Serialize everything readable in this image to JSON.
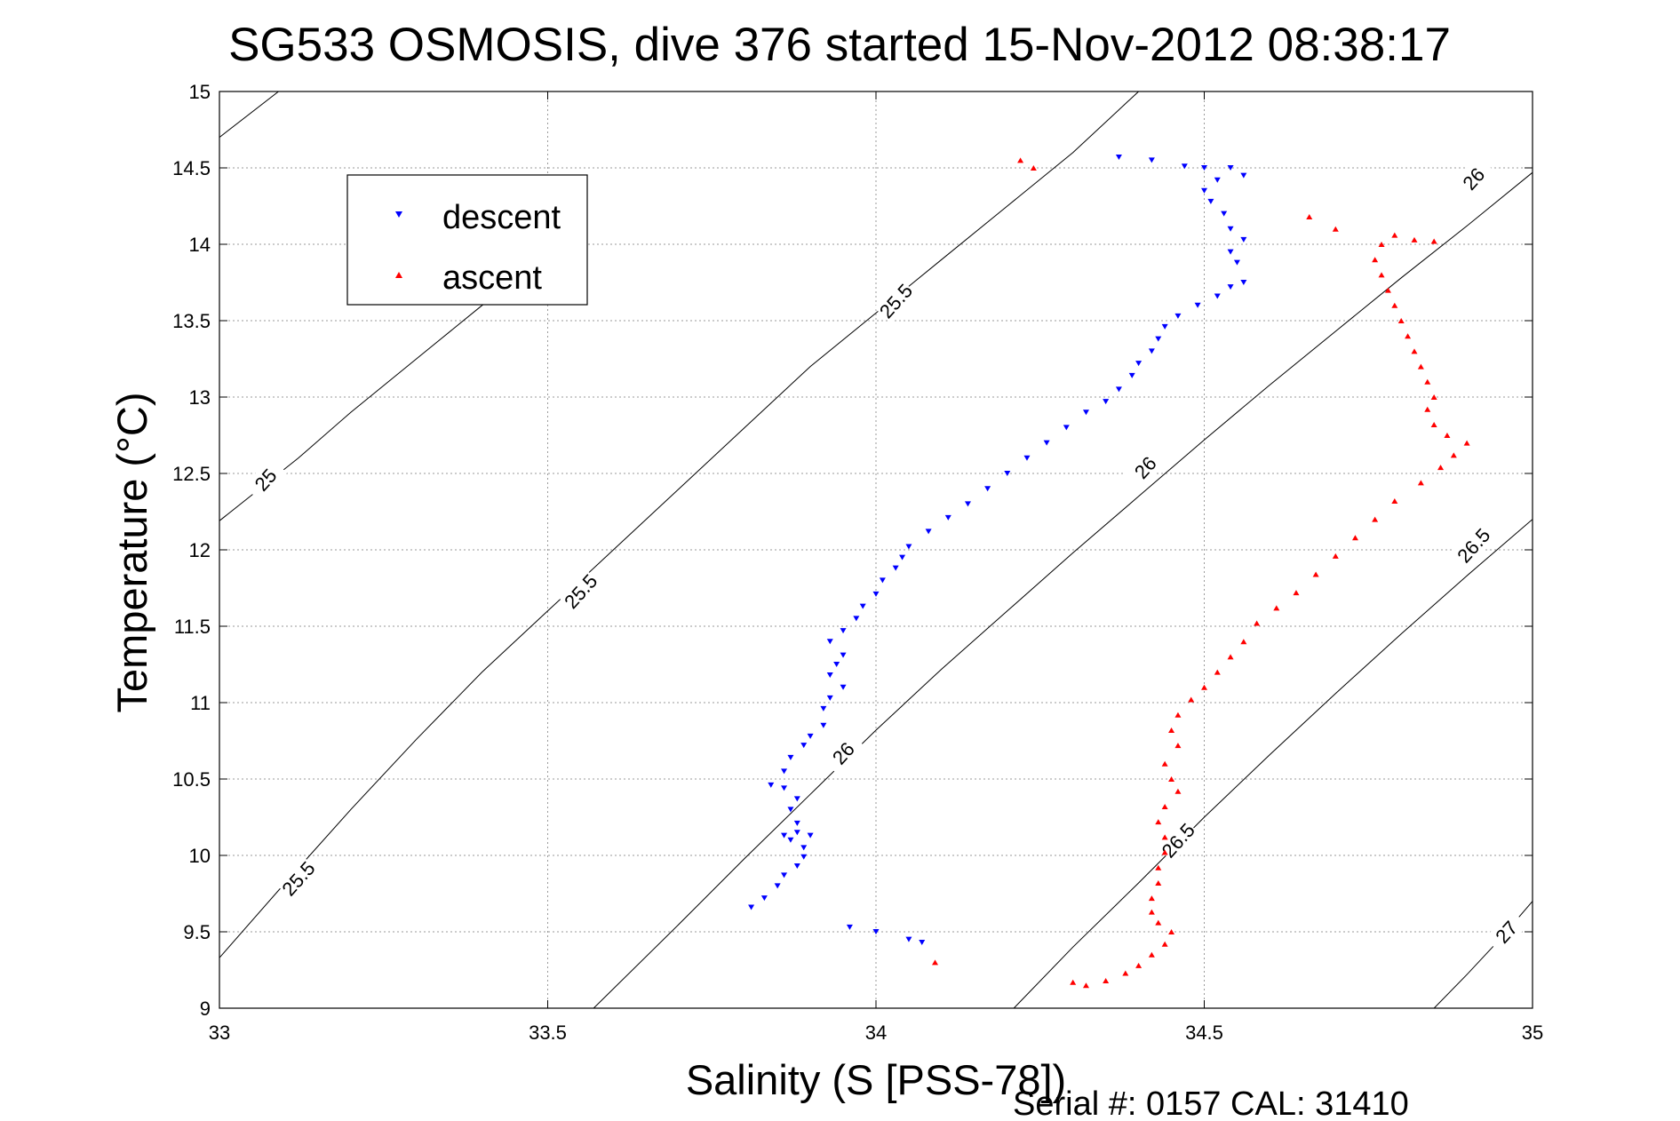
{
  "chart_data": {
    "type": "scatter",
    "title": "SG533 OSMOSIS, dive 376 started 15-Nov-2012 08:38:17",
    "xlabel": "Salinity (S [PSS-78])",
    "ylabel": "Temperature (°C)",
    "xlim": [
      33,
      35
    ],
    "ylim": [
      9,
      15
    ],
    "xticks": [
      33,
      33.5,
      34,
      34.5,
      35
    ],
    "xtick_labels": [
      "33",
      "33.5",
      "34",
      "34.5",
      "35"
    ],
    "yticks": [
      9,
      9.5,
      10,
      10.5,
      11,
      11.5,
      12,
      12.5,
      13,
      13.5,
      14,
      14.5,
      15
    ],
    "ytick_labels": [
      "9",
      "9.5",
      "10",
      "10.5",
      "11",
      "11.5",
      "12",
      "12.5",
      "13",
      "13.5",
      "14",
      "14.5",
      "15"
    ],
    "grid": true,
    "legend_position": "top-left",
    "footer": "Serial #: 0157  CAL: 31410",
    "series": [
      {
        "name": "descent",
        "color": "#0000ff",
        "marker": "triangle-down",
        "points": [
          [
            33.81,
            9.66
          ],
          [
            33.83,
            9.72
          ],
          [
            33.85,
            9.8
          ],
          [
            33.86,
            9.87
          ],
          [
            33.88,
            9.93
          ],
          [
            33.89,
            9.99
          ],
          [
            33.89,
            10.05
          ],
          [
            33.87,
            10.1
          ],
          [
            33.86,
            10.13
          ],
          [
            33.88,
            10.15
          ],
          [
            33.9,
            10.13
          ],
          [
            33.88,
            10.21
          ],
          [
            33.87,
            10.3
          ],
          [
            33.88,
            10.37
          ],
          [
            33.86,
            10.44
          ],
          [
            33.84,
            10.46
          ],
          [
            33.86,
            10.55
          ],
          [
            33.87,
            10.64
          ],
          [
            33.89,
            10.72
          ],
          [
            33.9,
            10.78
          ],
          [
            33.92,
            10.85
          ],
          [
            33.92,
            10.96
          ],
          [
            33.93,
            11.03
          ],
          [
            33.95,
            11.1
          ],
          [
            33.93,
            11.18
          ],
          [
            33.94,
            11.25
          ],
          [
            33.95,
            11.31
          ],
          [
            33.93,
            11.4
          ],
          [
            33.95,
            11.47
          ],
          [
            33.97,
            11.55
          ],
          [
            33.98,
            11.63
          ],
          [
            34.0,
            11.71
          ],
          [
            34.01,
            11.8
          ],
          [
            34.03,
            11.88
          ],
          [
            34.04,
            11.95
          ],
          [
            34.05,
            12.02
          ],
          [
            34.08,
            12.12
          ],
          [
            34.11,
            12.21
          ],
          [
            34.14,
            12.3
          ],
          [
            34.17,
            12.4
          ],
          [
            34.2,
            12.5
          ],
          [
            34.23,
            12.6
          ],
          [
            34.26,
            12.7
          ],
          [
            34.29,
            12.8
          ],
          [
            34.32,
            12.9
          ],
          [
            34.35,
            12.97
          ],
          [
            34.37,
            13.05
          ],
          [
            34.39,
            13.14
          ],
          [
            34.4,
            13.22
          ],
          [
            34.42,
            13.3
          ],
          [
            34.43,
            13.38
          ],
          [
            34.44,
            13.46
          ],
          [
            34.46,
            13.53
          ],
          [
            34.49,
            13.6
          ],
          [
            34.52,
            13.66
          ],
          [
            34.54,
            13.72
          ],
          [
            34.56,
            13.75
          ],
          [
            34.55,
            13.88
          ],
          [
            34.54,
            13.95
          ],
          [
            34.56,
            14.03
          ],
          [
            34.54,
            14.1
          ],
          [
            34.53,
            14.2
          ],
          [
            34.51,
            14.28
          ],
          [
            34.5,
            14.35
          ],
          [
            34.52,
            14.42
          ],
          [
            34.56,
            14.45
          ],
          [
            34.54,
            14.5
          ],
          [
            34.5,
            14.5
          ],
          [
            34.47,
            14.51
          ],
          [
            34.42,
            14.55
          ],
          [
            34.37,
            14.57
          ],
          [
            33.96,
            9.53
          ],
          [
            34.0,
            9.5
          ],
          [
            34.05,
            9.45
          ],
          [
            34.07,
            9.43
          ]
        ]
      },
      {
        "name": "ascent",
        "color": "#ff0000",
        "marker": "triangle-up",
        "points": [
          [
            34.3,
            9.17
          ],
          [
            34.32,
            9.15
          ],
          [
            34.35,
            9.18
          ],
          [
            34.38,
            9.23
          ],
          [
            34.4,
            9.28
          ],
          [
            34.42,
            9.35
          ],
          [
            34.44,
            9.42
          ],
          [
            34.45,
            9.5
          ],
          [
            34.43,
            9.56
          ],
          [
            34.42,
            9.63
          ],
          [
            34.42,
            9.72
          ],
          [
            34.43,
            9.82
          ],
          [
            34.43,
            9.92
          ],
          [
            34.44,
            10.02
          ],
          [
            34.44,
            10.12
          ],
          [
            34.43,
            10.22
          ],
          [
            34.44,
            10.32
          ],
          [
            34.46,
            10.42
          ],
          [
            34.45,
            10.5
          ],
          [
            34.44,
            10.6
          ],
          [
            34.46,
            10.72
          ],
          [
            34.45,
            10.82
          ],
          [
            34.46,
            10.92
          ],
          [
            34.48,
            11.02
          ],
          [
            34.5,
            11.1
          ],
          [
            34.52,
            11.2
          ],
          [
            34.54,
            11.3
          ],
          [
            34.56,
            11.4
          ],
          [
            34.58,
            11.52
          ],
          [
            34.61,
            11.62
          ],
          [
            34.64,
            11.72
          ],
          [
            34.67,
            11.84
          ],
          [
            34.7,
            11.96
          ],
          [
            34.73,
            12.08
          ],
          [
            34.76,
            12.2
          ],
          [
            34.79,
            12.32
          ],
          [
            34.83,
            12.44
          ],
          [
            34.86,
            12.54
          ],
          [
            34.88,
            12.62
          ],
          [
            34.9,
            12.7
          ],
          [
            34.87,
            12.75
          ],
          [
            34.85,
            12.82
          ],
          [
            34.84,
            12.92
          ],
          [
            34.85,
            13.0
          ],
          [
            34.84,
            13.1
          ],
          [
            34.83,
            13.2
          ],
          [
            34.82,
            13.3
          ],
          [
            34.81,
            13.4
          ],
          [
            34.8,
            13.5
          ],
          [
            34.79,
            13.6
          ],
          [
            34.78,
            13.7
          ],
          [
            34.77,
            13.8
          ],
          [
            34.76,
            13.9
          ],
          [
            34.77,
            14.0
          ],
          [
            34.79,
            14.06
          ],
          [
            34.82,
            14.03
          ],
          [
            34.85,
            14.02
          ],
          [
            34.7,
            14.1
          ],
          [
            34.66,
            14.18
          ],
          [
            34.09,
            9.3
          ],
          [
            34.24,
            14.5
          ],
          [
            34.22,
            14.55
          ]
        ]
      }
    ],
    "contours": [
      {
        "label": "25",
        "points": [
          [
            33.0,
            14.7
          ],
          [
            33.09,
            15.0
          ],
          [
            33.0,
            12.19
          ],
          [
            33.12,
            12.6
          ],
          [
            33.2,
            12.9
          ],
          [
            33.3,
            13.25
          ],
          [
            33.4,
            13.6
          ],
          [
            33.5,
            13.95
          ],
          [
            33.56,
            14.2
          ]
        ]
      },
      {
        "label": "25.5",
        "points": [
          [
            33.0,
            9.33
          ],
          [
            33.1,
            9.82
          ],
          [
            33.2,
            10.3
          ],
          [
            33.3,
            10.76
          ],
          [
            33.4,
            11.2
          ],
          [
            33.5,
            11.6
          ],
          [
            33.6,
            12.0
          ],
          [
            33.7,
            12.4
          ],
          [
            33.8,
            12.8
          ],
          [
            33.9,
            13.2
          ],
          [
            34.0,
            13.55
          ],
          [
            34.1,
            13.9
          ],
          [
            34.2,
            14.25
          ],
          [
            34.3,
            14.6
          ],
          [
            34.4,
            15.0
          ]
        ]
      },
      {
        "label": "26",
        "points": [
          [
            33.57,
            9.0
          ],
          [
            33.7,
            9.55
          ],
          [
            33.8,
            9.98
          ],
          [
            33.9,
            10.4
          ],
          [
            34.0,
            10.82
          ],
          [
            34.1,
            11.22
          ],
          [
            34.2,
            11.6
          ],
          [
            34.3,
            11.98
          ],
          [
            34.4,
            12.35
          ],
          [
            34.5,
            12.72
          ],
          [
            34.6,
            13.08
          ],
          [
            34.7,
            13.43
          ],
          [
            34.8,
            13.78
          ],
          [
            34.9,
            14.12
          ],
          [
            35.0,
            14.47
          ]
        ]
      },
      {
        "label": "26.5",
        "points": [
          [
            34.21,
            9.0
          ],
          [
            34.3,
            9.4
          ],
          [
            34.4,
            9.82
          ],
          [
            34.5,
            10.25
          ],
          [
            34.6,
            10.66
          ],
          [
            34.7,
            11.06
          ],
          [
            34.8,
            11.45
          ],
          [
            34.9,
            11.83
          ],
          [
            35.0,
            12.2
          ]
        ]
      },
      {
        "label": "27",
        "points": [
          [
            34.85,
            9.0
          ],
          [
            34.9,
            9.22
          ],
          [
            34.95,
            9.45
          ],
          [
            35.0,
            9.7
          ]
        ]
      }
    ],
    "contour_labels": [
      {
        "text": "25",
        "at": [
          33.07,
          12.46
        ]
      },
      {
        "text": "25.5",
        "at": [
          33.55,
          11.73
        ]
      },
      {
        "text": "25.5",
        "at": [
          33.12,
          9.85
        ]
      },
      {
        "text": "25.5",
        "at": [
          34.03,
          13.63
        ]
      },
      {
        "text": "26",
        "at": [
          33.95,
          10.67
        ]
      },
      {
        "text": "26",
        "at": [
          34.41,
          12.54
        ]
      },
      {
        "text": "26",
        "at": [
          34.91,
          14.43
        ]
      },
      {
        "text": "26.5",
        "at": [
          34.46,
          10.1
        ]
      },
      {
        "text": "26.5",
        "at": [
          34.91,
          12.03
        ]
      },
      {
        "text": "27",
        "at": [
          34.96,
          9.5
        ]
      }
    ]
  }
}
